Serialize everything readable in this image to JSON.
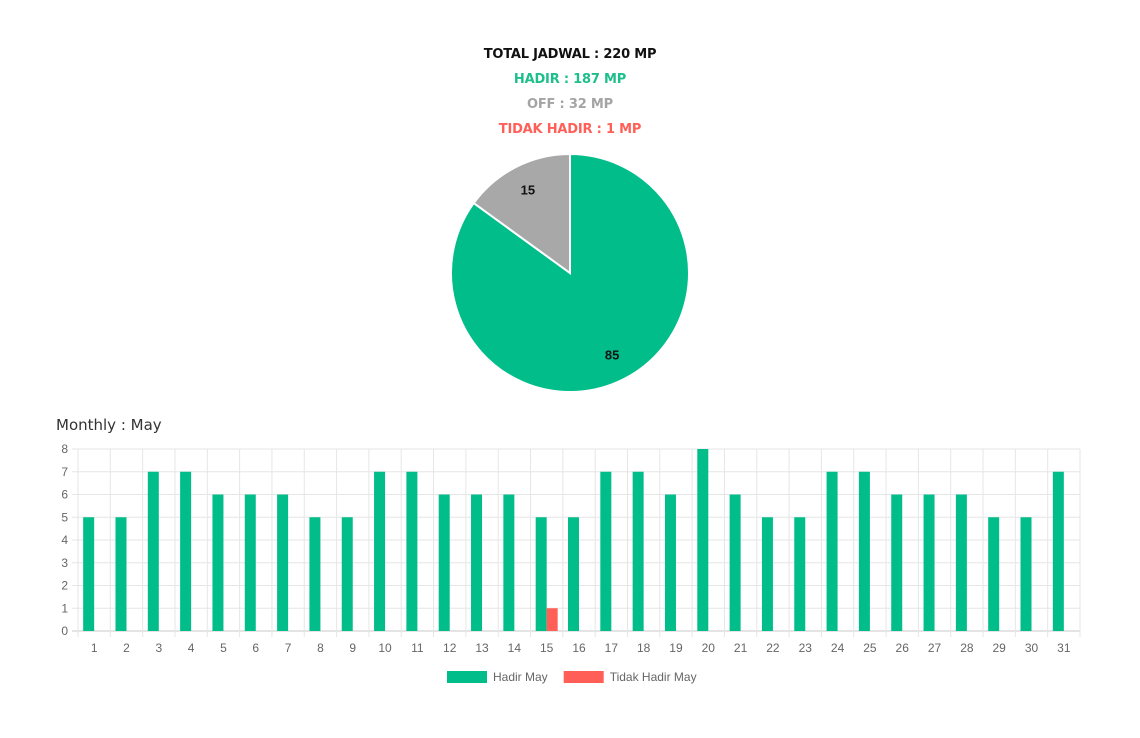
{
  "summary": {
    "total": "TOTAL JADWAL : 220 MP",
    "hadir": "HADIR : 187 MP",
    "off": "OFF : 32 MP",
    "tidak_hadir": "TIDAK HADIR : 1 MP"
  },
  "monthly_title": "Monthly : May",
  "colors": {
    "hadir": "#00bd8a",
    "off": "#a8a8a8",
    "tidak_hadir": "#ff5f57"
  },
  "chart_data": [
    {
      "type": "pie",
      "slices": [
        {
          "label": "85",
          "value": 85,
          "color": "#00bd8a"
        },
        {
          "label": "15",
          "value": 15,
          "color": "#a8a8a8"
        }
      ]
    },
    {
      "type": "bar",
      "categories": [
        "1",
        "2",
        "3",
        "4",
        "5",
        "6",
        "7",
        "8",
        "9",
        "10",
        "11",
        "12",
        "13",
        "14",
        "15",
        "16",
        "17",
        "18",
        "19",
        "20",
        "21",
        "22",
        "23",
        "24",
        "25",
        "26",
        "27",
        "28",
        "29",
        "30",
        "31"
      ],
      "series": [
        {
          "name": "Hadir May",
          "color": "#00bd8a",
          "values": [
            5,
            5,
            7,
            7,
            6,
            6,
            6,
            5,
            5,
            7,
            7,
            6,
            6,
            6,
            5,
            5,
            7,
            7,
            6,
            8,
            6,
            5,
            5,
            7,
            7,
            6,
            6,
            6,
            5,
            5,
            7
          ]
        },
        {
          "name": "Tidak Hadir May",
          "color": "#ff5f57",
          "values": [
            0,
            0,
            0,
            0,
            0,
            0,
            0,
            0,
            0,
            0,
            0,
            0,
            0,
            0,
            1,
            0,
            0,
            0,
            0,
            0,
            0,
            0,
            0,
            0,
            0,
            0,
            0,
            0,
            0,
            0,
            0
          ]
        }
      ],
      "ylim": [
        0,
        8
      ],
      "yticks": [
        "0",
        "1",
        "2",
        "3",
        "4",
        "5",
        "6",
        "7",
        "8"
      ],
      "grid": true,
      "legend": "bottom"
    }
  ]
}
